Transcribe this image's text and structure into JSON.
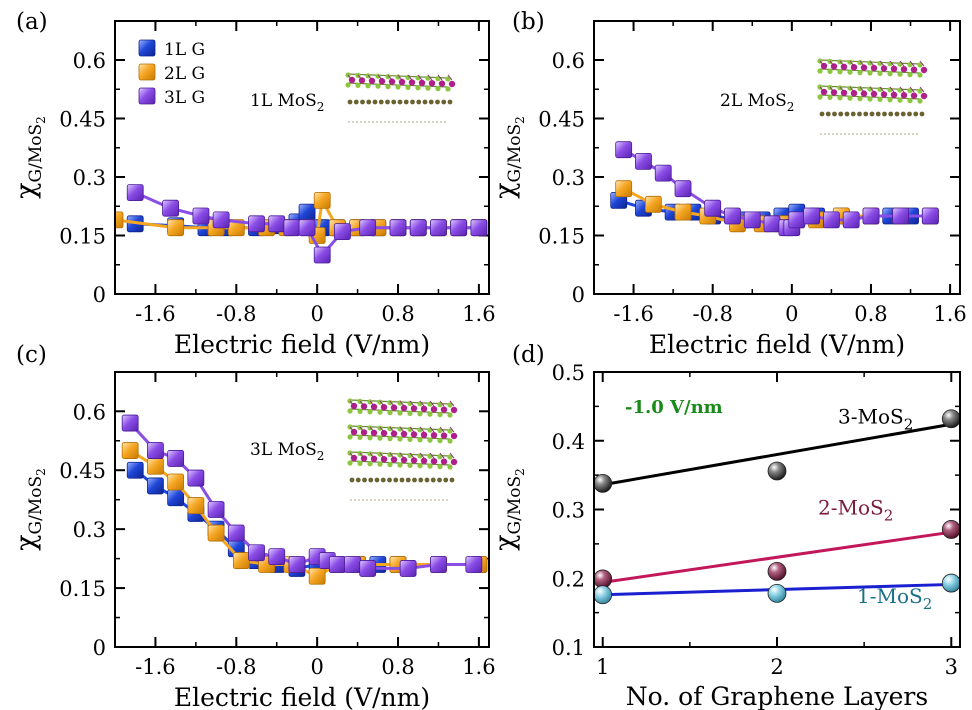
{
  "chart_data": [
    {
      "panel": "(a)",
      "type": "line",
      "inset_label": "1L MoS2",
      "xlabel": "Electric field (V/nm)",
      "ylabel": "χG/MoS2",
      "xlim": [
        -2.0,
        1.7
      ],
      "ylim": [
        0,
        0.7
      ],
      "xticks": [
        -1.6,
        -0.8,
        0,
        0.8,
        1.6
      ],
      "yticks": [
        0,
        0.15,
        0.3,
        0.45,
        0.6
      ],
      "legend": "top-left",
      "series": [
        {
          "name": "1L G",
          "color": "#2047d8",
          "x": [
            -1.8,
            -1.4,
            -1.1,
            -0.9,
            -0.6,
            -0.4,
            -0.2,
            -0.1,
            0,
            0.05,
            0.2,
            0.4,
            0.6,
            0.8,
            1.0,
            1.2,
            1.4,
            1.6
          ],
          "y": [
            0.18,
            0.175,
            0.17,
            0.17,
            0.17,
            0.175,
            0.185,
            0.21,
            0.16,
            0.17,
            0.17,
            0.17,
            0.17,
            0.17,
            0.17,
            0.17,
            0.17,
            0.17
          ]
        },
        {
          "name": "2L G",
          "color": "#f5a623",
          "x": [
            -2.0,
            -1.4,
            -1.0,
            -0.8,
            -0.5,
            -0.3,
            -0.1,
            0,
            0.05,
            0.2,
            0.4,
            0.6,
            0.8,
            1.0,
            1.2,
            1.4,
            1.6
          ],
          "y": [
            0.19,
            0.17,
            0.17,
            0.17,
            0.17,
            0.17,
            0.17,
            0.15,
            0.24,
            0.17,
            0.17,
            0.17,
            0.17,
            0.17,
            0.17,
            0.17,
            0.17
          ]
        },
        {
          "name": "3L G",
          "color": "#8a4de6",
          "x": [
            -1.8,
            -1.45,
            -1.15,
            -0.95,
            -0.6,
            -0.4,
            -0.25,
            -0.1,
            0.05,
            0.25,
            0.5,
            0.8,
            1.0,
            1.2,
            1.4,
            1.6
          ],
          "y": [
            0.26,
            0.22,
            0.2,
            0.19,
            0.18,
            0.18,
            0.17,
            0.17,
            0.1,
            0.16,
            0.17,
            0.17,
            0.17,
            0.17,
            0.17,
            0.17
          ]
        }
      ]
    },
    {
      "panel": "(b)",
      "type": "line",
      "inset_label": "2L MoS2",
      "xlabel": "Electric field (V/nm)",
      "ylabel": "χG/MoS2",
      "xlim": [
        -2.0,
        1.7
      ],
      "ylim": [
        0,
        0.7
      ],
      "xticks": [
        -1.6,
        -0.8,
        0,
        0.8,
        1.6
      ],
      "yticks": [
        0,
        0.15,
        0.3,
        0.45,
        0.6
      ],
      "series": [
        {
          "name": "1L G",
          "color": "#2047d8",
          "x": [
            -1.75,
            -1.5,
            -1.2,
            -1.0,
            -0.8,
            -0.5,
            -0.3,
            -0.1,
            0.05,
            0.25,
            0.5,
            0.8,
            1.0,
            1.2,
            1.4
          ],
          "y": [
            0.24,
            0.22,
            0.21,
            0.21,
            0.2,
            0.19,
            0.19,
            0.2,
            0.21,
            0.2,
            0.2,
            0.2,
            0.2,
            0.2,
            0.2
          ]
        },
        {
          "name": "2L G",
          "color": "#f5a623",
          "x": [
            -1.7,
            -1.4,
            -1.1,
            -0.85,
            -0.55,
            -0.3,
            -0.1,
            0.05,
            0.25,
            0.5,
            0.8,
            1.1,
            1.4
          ],
          "y": [
            0.27,
            0.23,
            0.21,
            0.2,
            0.18,
            0.18,
            0.18,
            0.19,
            0.19,
            0.2,
            0.2,
            0.2,
            0.2
          ]
        },
        {
          "name": "3L G",
          "color": "#8a4de6",
          "x": [
            -1.7,
            -1.5,
            -1.3,
            -1.1,
            -0.8,
            -0.6,
            -0.4,
            -0.2,
            -0.05,
            0,
            0.05,
            0.2,
            0.4,
            0.6,
            0.8,
            1.1,
            1.4
          ],
          "y": [
            0.37,
            0.34,
            0.31,
            0.27,
            0.22,
            0.2,
            0.19,
            0.18,
            0.17,
            0.17,
            0.19,
            0.2,
            0.19,
            0.19,
            0.2,
            0.2,
            0.2
          ]
        }
      ]
    },
    {
      "panel": "(c)",
      "type": "line",
      "inset_label": "3L MoS2",
      "xlabel": "Electric field (V/nm)",
      "ylabel": "χG/MoS2",
      "xlim": [
        -2.0,
        1.7
      ],
      "ylim": [
        0,
        0.7
      ],
      "xticks": [
        -1.6,
        -0.8,
        0,
        0.8,
        1.6
      ],
      "yticks": [
        0,
        0.15,
        0.3,
        0.45,
        0.6
      ],
      "series": [
        {
          "name": "1L G",
          "color": "#2047d8",
          "x": [
            -1.8,
            -1.6,
            -1.4,
            -1.2,
            -1.0,
            -0.8,
            -0.6,
            -0.4,
            -0.2,
            0,
            0.2,
            0.4,
            0.6,
            0.8,
            1.2,
            1.6
          ],
          "y": [
            0.45,
            0.41,
            0.38,
            0.34,
            0.3,
            0.25,
            0.22,
            0.21,
            0.2,
            0.21,
            0.21,
            0.21,
            0.21,
            0.21,
            0.21,
            0.21
          ]
        },
        {
          "name": "2L G",
          "color": "#f5a623",
          "x": [
            -1.85,
            -1.6,
            -1.4,
            -1.2,
            -1.0,
            -0.75,
            -0.5,
            -0.25,
            0,
            0.2,
            0.4,
            0.8,
            1.2,
            1.6
          ],
          "y": [
            0.5,
            0.46,
            0.42,
            0.36,
            0.29,
            0.22,
            0.21,
            0.21,
            0.18,
            0.21,
            0.21,
            0.21,
            0.21,
            0.21
          ]
        },
        {
          "name": "3L G",
          "color": "#8a4de6",
          "x": [
            -1.85,
            -1.6,
            -1.4,
            -1.2,
            -1.0,
            -0.8,
            -0.6,
            -0.4,
            -0.2,
            0,
            0.1,
            0.2,
            0.35,
            0.5,
            0.9,
            1.2,
            1.55
          ],
          "y": [
            0.57,
            0.5,
            0.48,
            0.43,
            0.35,
            0.29,
            0.24,
            0.23,
            0.21,
            0.23,
            0.22,
            0.21,
            0.21,
            0.2,
            0.2,
            0.21,
            0.21
          ]
        }
      ]
    },
    {
      "panel": "(d)",
      "type": "line",
      "annotation": "-1.0 V/nm",
      "xlabel": "No. of Graphene Layers",
      "ylabel": "χG/MoS2",
      "xlim": [
        0.95,
        3.05
      ],
      "ylim": [
        0.1,
        0.5
      ],
      "xticks": [
        1,
        2,
        3
      ],
      "yticks": [
        0.1,
        0.2,
        0.3,
        0.4,
        0.5
      ],
      "series": [
        {
          "name": "3-MoS2",
          "marker_color": "#3a3a3a",
          "line_color": "#000000",
          "x": [
            1,
            2,
            3
          ],
          "y": [
            0.338,
            0.356,
            0.432
          ],
          "fit": [
            0.336,
            0.424
          ]
        },
        {
          "name": "2-MoS2",
          "marker_color": "#7a1a3a",
          "line_color": "#c2185b",
          "label_color": "#7a1a3a",
          "x": [
            1,
            2,
            3
          ],
          "y": [
            0.199,
            0.21,
            0.271
          ],
          "fit": [
            0.194,
            0.267
          ]
        },
        {
          "name": "1-MoS2",
          "marker_color": "#4aa8c0",
          "line_color": "#1a1fd0",
          "label_color": "#1a6f8a",
          "x": [
            1,
            2,
            3
          ],
          "y": [
            0.176,
            0.178,
            0.193
          ],
          "fit": [
            0.176,
            0.191
          ]
        }
      ]
    }
  ],
  "colors": {
    "annotation": "#1a8a1a"
  }
}
